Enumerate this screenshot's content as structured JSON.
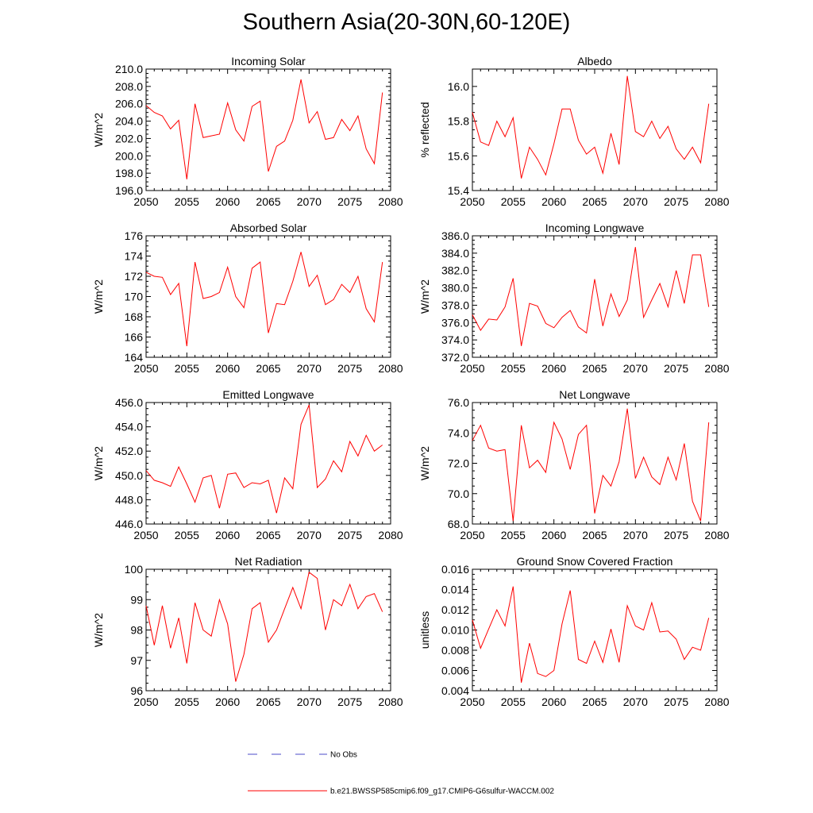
{
  "title": "Southern Asia(20-30N,60-120E)",
  "colors": {
    "model": "#ff0000",
    "obs": "#4b4bc8",
    "axis": "#000000"
  },
  "legend": {
    "obs_label": "No Obs",
    "model_label": "b.e21.BWSSP585cmip6.f09_g17.CMIP6-G6sulfur-WACCM.002"
  },
  "chart_data": [
    {
      "type": "line",
      "title": "Incoming Solar",
      "xlabel": "",
      "ylabel": "W/m^2",
      "xlim": [
        2050,
        2080
      ],
      "ylim": [
        196,
        210
      ],
      "yticks": [
        196,
        198,
        200,
        202,
        204,
        206,
        208,
        210
      ],
      "ytick_labels": [
        "196.0",
        "198.0",
        "200.0",
        "202.0",
        "204.0",
        "206.0",
        "208.0",
        "210.0"
      ],
      "xticks": [
        2050,
        2055,
        2060,
        2065,
        2070,
        2075,
        2080
      ],
      "x": [
        2050,
        2051,
        2052,
        2053,
        2054,
        2055,
        2056,
        2057,
        2058,
        2059,
        2060,
        2061,
        2062,
        2063,
        2064,
        2065,
        2066,
        2067,
        2068,
        2069,
        2070,
        2071,
        2072,
        2073,
        2074,
        2075,
        2076,
        2077,
        2078,
        2079
      ],
      "series": [
        {
          "values": [
            205.8,
            205.0,
            204.6,
            203.1,
            204.1,
            197.3,
            206.0,
            202.1,
            202.3,
            202.5,
            206.1,
            203.0,
            201.7,
            205.7,
            206.3,
            198.2,
            201.1,
            201.7,
            204.1,
            208.8,
            203.8,
            205.1,
            201.9,
            202.1,
            204.2,
            202.9,
            204.6,
            200.8,
            199.1,
            207.3
          ]
        }
      ]
    },
    {
      "type": "line",
      "title": "Albedo",
      "xlabel": "",
      "ylabel": "% reflected",
      "xlim": [
        2050,
        2080
      ],
      "ylim": [
        15.4,
        16.1
      ],
      "yticks": [
        15.4,
        15.6,
        15.8,
        16.0
      ],
      "ytick_labels": [
        "15.4",
        "15.6",
        "15.8",
        "16.0"
      ],
      "xticks": [
        2050,
        2055,
        2060,
        2065,
        2070,
        2075,
        2080
      ],
      "x": [
        2050,
        2051,
        2052,
        2053,
        2054,
        2055,
        2056,
        2057,
        2058,
        2059,
        2060,
        2061,
        2062,
        2063,
        2064,
        2065,
        2066,
        2067,
        2068,
        2069,
        2070,
        2071,
        2072,
        2073,
        2074,
        2075,
        2076,
        2077,
        2078,
        2079
      ],
      "series": [
        {
          "values": [
            15.85,
            15.68,
            15.66,
            15.8,
            15.71,
            15.82,
            15.47,
            15.65,
            15.58,
            15.49,
            15.67,
            15.87,
            15.87,
            15.69,
            15.61,
            15.65,
            15.5,
            15.73,
            15.55,
            16.06,
            15.74,
            15.71,
            15.8,
            15.7,
            15.77,
            15.64,
            15.58,
            15.65,
            15.56,
            15.9
          ]
        }
      ]
    },
    {
      "type": "line",
      "title": "Absorbed Solar",
      "xlabel": "",
      "ylabel": "W/m^2",
      "xlim": [
        2050,
        2080
      ],
      "ylim": [
        164,
        176
      ],
      "yticks": [
        164,
        166,
        168,
        170,
        172,
        174,
        176
      ],
      "ytick_labels": [
        "164",
        "166",
        "168",
        "170",
        "172",
        "174",
        "176"
      ],
      "xticks": [
        2050,
        2055,
        2060,
        2065,
        2070,
        2075,
        2080
      ],
      "x": [
        2050,
        2051,
        2052,
        2053,
        2054,
        2055,
        2056,
        2057,
        2058,
        2059,
        2060,
        2061,
        2062,
        2063,
        2064,
        2065,
        2066,
        2067,
        2068,
        2069,
        2070,
        2071,
        2072,
        2073,
        2074,
        2075,
        2076,
        2077,
        2078,
        2079
      ],
      "series": [
        {
          "values": [
            172.4,
            172.0,
            171.9,
            170.2,
            171.3,
            165.1,
            173.4,
            169.8,
            170.0,
            170.4,
            172.9,
            170.0,
            168.9,
            172.8,
            173.4,
            166.4,
            169.3,
            169.2,
            171.5,
            174.4,
            171.0,
            172.1,
            169.2,
            169.7,
            171.2,
            170.4,
            172.0,
            168.8,
            167.5,
            173.4
          ]
        }
      ]
    },
    {
      "type": "line",
      "title": "Incoming Longwave",
      "xlabel": "",
      "ylabel": "W/m^2",
      "xlim": [
        2050,
        2080
      ],
      "ylim": [
        372,
        386
      ],
      "yticks": [
        372,
        374,
        376,
        378,
        380,
        382,
        384,
        386
      ],
      "ytick_labels": [
        "372.0",
        "374.0",
        "376.0",
        "378.0",
        "380.0",
        "382.0",
        "384.0",
        "386.0"
      ],
      "xticks": [
        2050,
        2055,
        2060,
        2065,
        2070,
        2075,
        2080
      ],
      "x": [
        2050,
        2051,
        2052,
        2053,
        2054,
        2055,
        2056,
        2057,
        2058,
        2059,
        2060,
        2061,
        2062,
        2063,
        2064,
        2065,
        2066,
        2067,
        2068,
        2069,
        2070,
        2071,
        2072,
        2073,
        2074,
        2075,
        2076,
        2077,
        2078,
        2079
      ],
      "series": [
        {
          "values": [
            376.9,
            375.1,
            376.4,
            376.3,
            377.8,
            381.1,
            373.3,
            378.2,
            377.9,
            375.9,
            375.4,
            376.6,
            377.4,
            375.5,
            374.8,
            381.0,
            375.6,
            379.3,
            376.7,
            378.6,
            384.7,
            376.6,
            378.6,
            380.5,
            377.8,
            382.0,
            378.2,
            383.8,
            383.8,
            377.8
          ]
        }
      ]
    },
    {
      "type": "line",
      "title": "Emitted Longwave",
      "xlabel": "",
      "ylabel": "W/m^2",
      "xlim": [
        2050,
        2080
      ],
      "ylim": [
        446,
        456
      ],
      "yticks": [
        446,
        448,
        450,
        452,
        454,
        456
      ],
      "ytick_labels": [
        "446.0",
        "448.0",
        "450.0",
        "452.0",
        "454.0",
        "456.0"
      ],
      "xticks": [
        2050,
        2055,
        2060,
        2065,
        2070,
        2075,
        2080
      ],
      "x": [
        2050,
        2051,
        2052,
        2053,
        2054,
        2055,
        2056,
        2057,
        2058,
        2059,
        2060,
        2061,
        2062,
        2063,
        2064,
        2065,
        2066,
        2067,
        2068,
        2069,
        2070,
        2071,
        2072,
        2073,
        2074,
        2075,
        2076,
        2077,
        2078,
        2079
      ],
      "series": [
        {
          "values": [
            450.4,
            449.6,
            449.4,
            449.1,
            450.7,
            449.3,
            447.8,
            449.8,
            450.0,
            447.3,
            450.1,
            450.2,
            449.0,
            449.4,
            449.3,
            449.6,
            446.9,
            449.8,
            448.9,
            454.2,
            455.8,
            449.0,
            449.7,
            451.2,
            450.3,
            452.8,
            451.6,
            453.3,
            452.0,
            452.5
          ]
        }
      ]
    },
    {
      "type": "line",
      "title": "Net Longwave",
      "xlabel": "",
      "ylabel": "W/m^2",
      "xlim": [
        2050,
        2080
      ],
      "ylim": [
        68,
        76
      ],
      "yticks": [
        68,
        70,
        72,
        74,
        76
      ],
      "ytick_labels": [
        "68.0",
        "70.0",
        "72.0",
        "74.0",
        "76.0"
      ],
      "xticks": [
        2050,
        2055,
        2060,
        2065,
        2070,
        2075,
        2080
      ],
      "x": [
        2050,
        2051,
        2052,
        2053,
        2054,
        2055,
        2056,
        2057,
        2058,
        2059,
        2060,
        2061,
        2062,
        2063,
        2064,
        2065,
        2066,
        2067,
        2068,
        2069,
        2070,
        2071,
        2072,
        2073,
        2074,
        2075,
        2076,
        2077,
        2078,
        2079
      ],
      "series": [
        {
          "values": [
            73.5,
            74.5,
            73.0,
            72.8,
            72.9,
            68.2,
            74.5,
            71.7,
            72.2,
            71.4,
            74.7,
            73.6,
            71.6,
            73.9,
            74.5,
            68.7,
            71.2,
            70.5,
            72.1,
            75.6,
            71.0,
            72.4,
            71.1,
            70.6,
            72.4,
            70.9,
            73.3,
            69.5,
            68.2,
            74.7
          ]
        }
      ]
    },
    {
      "type": "line",
      "title": "Net Radiation",
      "xlabel": "",
      "ylabel": "W/m^2",
      "xlim": [
        2050,
        2080
      ],
      "ylim": [
        96,
        100
      ],
      "yticks": [
        96,
        97,
        98,
        99,
        100
      ],
      "ytick_labels": [
        "96",
        "97",
        "98",
        "99",
        "100"
      ],
      "xticks": [
        2050,
        2055,
        2060,
        2065,
        2070,
        2075,
        2080
      ],
      "x": [
        2050,
        2051,
        2052,
        2053,
        2054,
        2055,
        2056,
        2057,
        2058,
        2059,
        2060,
        2061,
        2062,
        2063,
        2064,
        2065,
        2066,
        2067,
        2068,
        2069,
        2070,
        2071,
        2072,
        2073,
        2074,
        2075,
        2076,
        2077,
        2078,
        2079
      ],
      "series": [
        {
          "values": [
            98.8,
            97.5,
            98.8,
            97.4,
            98.4,
            96.9,
            98.9,
            98.0,
            97.8,
            99.0,
            98.2,
            96.3,
            97.2,
            98.7,
            98.9,
            97.6,
            98.0,
            98.7,
            99.4,
            98.7,
            99.9,
            99.7,
            98.0,
            99.0,
            98.8,
            99.5,
            98.7,
            99.1,
            99.2,
            98.6
          ]
        }
      ]
    },
    {
      "type": "line",
      "title": "Ground Snow Covered Fraction",
      "xlabel": "",
      "ylabel": "unitless",
      "xlim": [
        2050,
        2080
      ],
      "ylim": [
        0.004,
        0.016
      ],
      "yticks": [
        0.004,
        0.006,
        0.008,
        0.01,
        0.012,
        0.014,
        0.016
      ],
      "ytick_labels": [
        "0.004",
        "0.006",
        "0.008",
        "0.010",
        "0.012",
        "0.014",
        "0.016"
      ],
      "xticks": [
        2050,
        2055,
        2060,
        2065,
        2070,
        2075,
        2080
      ],
      "x": [
        2050,
        2051,
        2052,
        2053,
        2054,
        2055,
        2056,
        2057,
        2058,
        2059,
        2060,
        2061,
        2062,
        2063,
        2064,
        2065,
        2066,
        2067,
        2068,
        2069,
        2070,
        2071,
        2072,
        2073,
        2074,
        2075,
        2076,
        2077,
        2078,
        2079
      ],
      "series": [
        {
          "values": [
            0.011,
            0.0082,
            0.0101,
            0.012,
            0.0104,
            0.0143,
            0.0048,
            0.0087,
            0.0057,
            0.0054,
            0.006,
            0.0106,
            0.0139,
            0.0071,
            0.0067,
            0.0089,
            0.0068,
            0.0101,
            0.0068,
            0.0124,
            0.0104,
            0.01,
            0.0127,
            0.0098,
            0.0099,
            0.0091,
            0.0071,
            0.0083,
            0.008,
            0.0112
          ]
        }
      ]
    }
  ]
}
